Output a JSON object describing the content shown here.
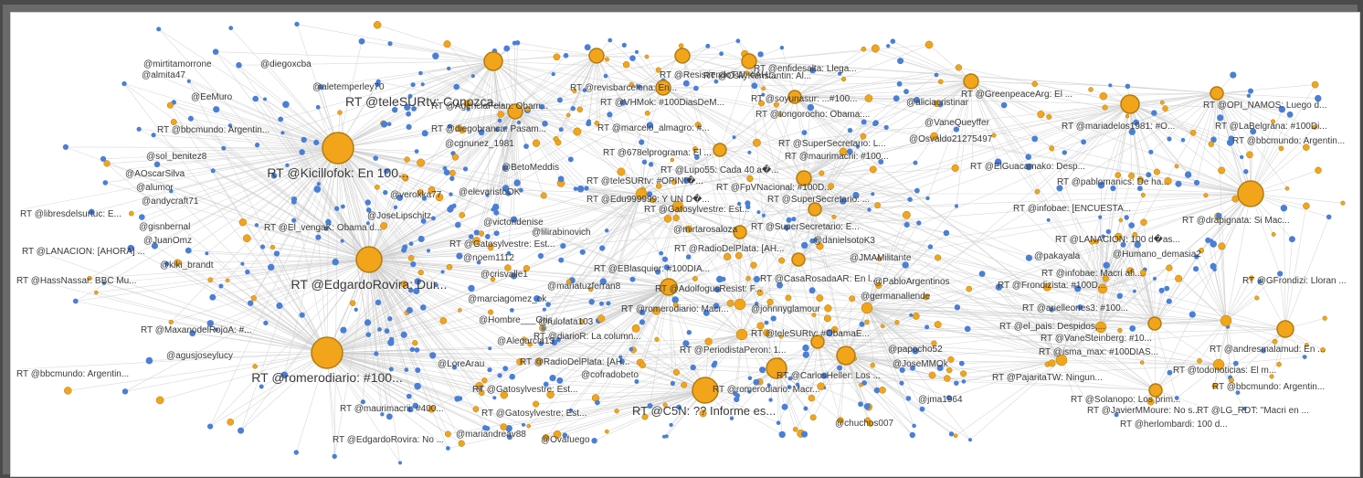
{
  "colors": {
    "background": "#ffffff",
    "frame": "#6a6a6a",
    "edge": "#cccccc",
    "node_user": "#4a7fd6",
    "node_retweet": "#f2a51a",
    "node_retweet_stroke": "#b07c12",
    "label": "#3a3a3a"
  },
  "graph": {
    "type": "network",
    "labels": [
      "@mirtitamorrone",
      "@diegoxcba",
      "@almita47",
      "@aletemperley70",
      "@EeMuro",
      "RT @bbcmundo: Argentin...",
      "@sol_benitez8",
      "RT @Kicillofok: En 100...",
      "@AOscarSilva",
      "@alumor",
      "@andycraft71",
      "RT @libresdelsurtuc: E...",
      "@gisnbernal",
      "@JuanOmz",
      "RT @LANACION: [AHORA] ...",
      "@kiki_brandt",
      "RT @HassNassar: BBC Mu...",
      "RT @EdgardoRovira: Dur...",
      "@JoseLipschitz",
      "RT @El_vengaK: Obama d...",
      "RT @MaxanodelRojoA: #...",
      "@agusjoseylucy",
      "RT @romerodiario: #100...",
      "RT @bbcmundo: Argentin...",
      "RT @maurimacrii: #400...",
      "RT @EdgardoRovira: No ...",
      "RT @ResistiendoTW: #AH...",
      "RT @teleSURtv: Conozca...",
      "RT @enfidesalta: Llega...",
      "RT @OskyKonstantin: Al...",
      "RT @revisbarcelona: En...",
      "RT @AgenciaFelan: Obam...",
      "RT @VHMok: #100DiasDeM...",
      "RT @soyunasur: ...#100...",
      "@aliciacristinar",
      "RT @GreenpeaceArg: El ...",
      "RT @tongorocho: Obama:...",
      "RT @diegobranca: Pasam...",
      "RT @marcelo_almagro: #...",
      "@cgnunez_1981",
      "@VaneQueyffer",
      "RT @SuperSecretario: L...",
      "@Osvaldo21275497",
      "RT @678elprograma: El ...",
      "RT @maurimacrii: #100...",
      "@BetoMeddis",
      "RT @Lupo55: Cada 40 a�...",
      "RT @teleSURtv: #OPINI�...",
      "RT @FpVNacional: #100D...",
      "@verokka77",
      "@elevaristoOK",
      "RT @Edu999999: Y UN D�...",
      "RT @SuperSecretario: ...",
      "RT @Gatosylvestre: Est...",
      "@lilirabinovich",
      "@victoridenise",
      "@mirtarosaloza",
      "RT @SuperSecretario: E...",
      "@danielsotoK3",
      "RT @Gatosylvestre: Est...",
      "RT @RadioDelPlata: [AH...",
      "@noem1112",
      "@JMAMilitante",
      "RT @EBlasquier: #100DIA...",
      "RT @CasaRosadaAR: En l...",
      "@PabloArgentinos",
      "@crisvalle1",
      "@mariatuzferran8",
      "RT @AdolfogusResist: F...",
      "@marciagomez_ok",
      "@germanallende",
      "@johnnyglamour",
      "RT @romerodiario: Macr...",
      "@Hombre___Gris",
      "@rulofata103",
      "RT @teleSURtv: #ObamaE...",
      "RT @diarioR: La column...",
      "@Alegarcia13",
      "@papocho52",
      "RT @PeriodistaPeron: 1...",
      "@JoseMMOk",
      "@LoreArau",
      "RT @RadioDelPlata: [AH...",
      "@cofradobeto",
      "RT @CarlosHeller: Los ...",
      "RT @Gatosylvestre: Est...",
      "RT @romerodiario: Macr...",
      "@jma1964",
      "RT @Gatosylvestre: Est...",
      "RT @C5N: ?? Informe es...",
      "@mariandreav88",
      "@chuchos007",
      "@Ovafuego",
      "RT @mariadelos1981: #O...",
      "RT @OPI_NAMOS: Luego d...",
      "RT @LaBelgrana: #100Di...",
      "RT @bbcmundo: Argentin...",
      "RT @ElGuacamako: Desp...",
      "RT @pablomanics: De ha...",
      "RT @infobae: [ENCUESTA...",
      "RT @drapignata: Si Mac...",
      "RT @LANACION: 100 d�as...",
      "@pakayala",
      "@Humano_demasia2",
      "RT @infobae: Macri afi...",
      "RT @Frondizista: #100D...",
      "RT @GFrondizi: Lloran ...",
      "RT @arielleones3: #100...",
      "RT @el_pais: Despidos,...",
      "RT @VaneSteinberg: #10...",
      "RT @isma_max: #100DIAS...",
      "RT @andresmalamud: En ...",
      "RT @PajaritaTW: Ningun...",
      "RT @todonoticias: El m...",
      "RT @Solanopo: Los prim...",
      "RT @bbcmundo: Argentin...",
      "RT @JavierMMoure: No s...",
      "RT @LG_RDT: \"Macri en ...",
      "RT @herlombardi: 100 d..."
    ]
  }
}
